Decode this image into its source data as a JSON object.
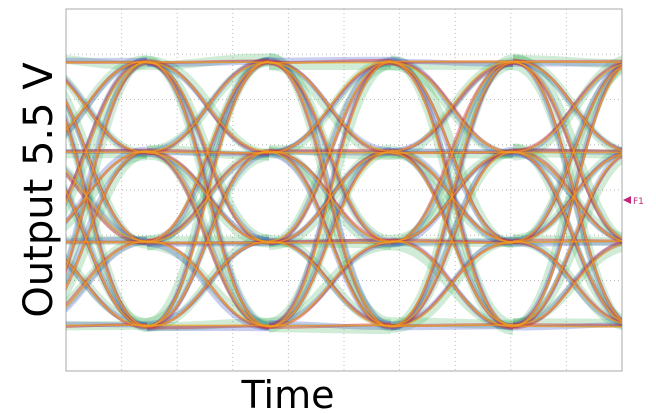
{
  "x_label": "Time",
  "y_label": "Output 5.5 V",
  "marker": "F1"
}
